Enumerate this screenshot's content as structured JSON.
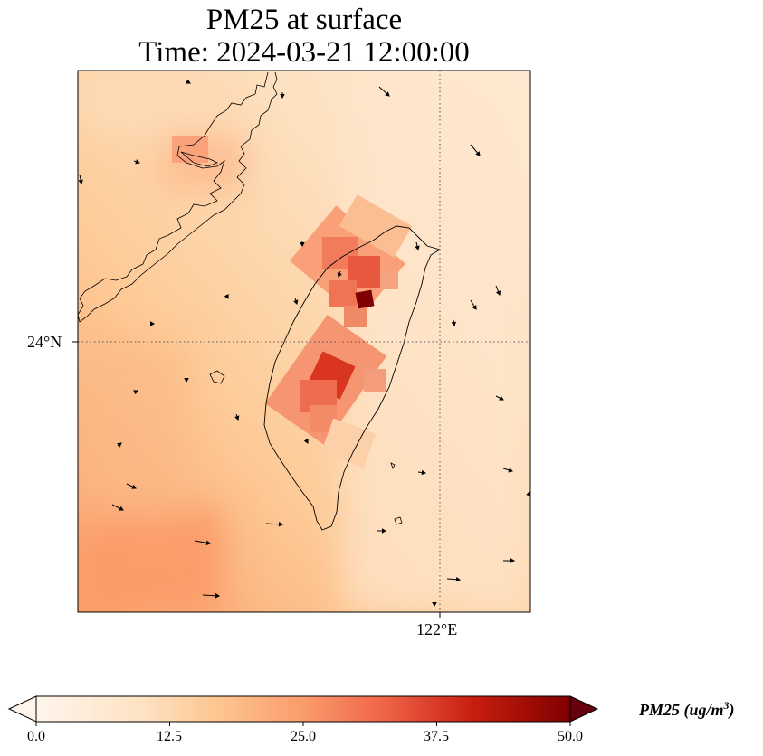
{
  "title_line1": "PM25 at surface",
  "title_line2": "Time: 2024-03-21 12:00:00",
  "lat_tick": "24°N",
  "lon_tick": "122°E",
  "colorbar": {
    "label_base": "PM25 (ug/m",
    "label_sup": "3",
    "label_close": ")",
    "ticks": [
      "0.0",
      "12.5",
      "25.0",
      "37.5",
      "50.0"
    ],
    "min": 0,
    "max": 50,
    "extend": "both",
    "colormap": [
      "#fff5eb",
      "#fee6ce",
      "#fdd0a2",
      "#fdae6b",
      "#f16913",
      "#d94801",
      "#a50f15",
      "#67000d"
    ]
  },
  "map": {
    "features": [
      "Taiwan coastline",
      "China coastline",
      "gridlines (dotted)",
      "wind vectors"
    ],
    "hotspots_ug_m3": [
      {
        "name": "peak near Taipei",
        "value": 50
      },
      {
        "name": "central west Taiwan",
        "value": 40
      }
    ]
  }
}
